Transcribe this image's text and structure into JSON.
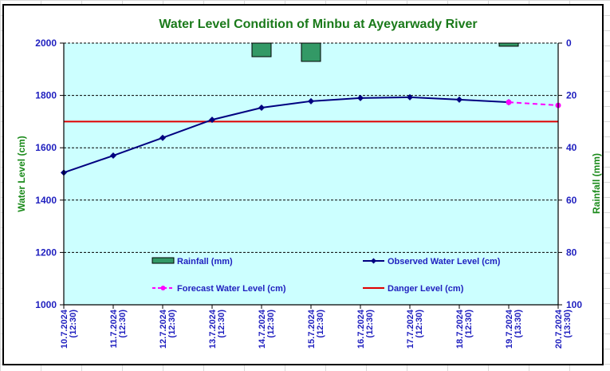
{
  "chart_data": {
    "type": "line",
    "title": "Water Level Condition of Minbu at Ayeyarwady River",
    "ylabel": "Water Level (cm)",
    "y2label": "Rainfall (mm)",
    "ylim": [
      1000,
      2000
    ],
    "yticks": [
      1000,
      1200,
      1400,
      1600,
      1800,
      2000
    ],
    "y2lim": [
      0,
      100
    ],
    "y2_inverted": true,
    "y2ticks": [
      0,
      20,
      40,
      60,
      80,
      100
    ],
    "grid": true,
    "categories": [
      {
        "date": "10.7.2024",
        "time": "(12:30)"
      },
      {
        "date": "11.7.2024",
        "time": "(12:30)"
      },
      {
        "date": "12.7.2024",
        "time": "(12:30)"
      },
      {
        "date": "13.7.2024",
        "time": "(12:30)"
      },
      {
        "date": "14.7.2024",
        "time": "(12:30)"
      },
      {
        "date": "15.7.2024",
        "time": "(12:30)"
      },
      {
        "date": "16.7.2024",
        "time": "(12:30)"
      },
      {
        "date": "17.7.2024",
        "time": "(12:30)"
      },
      {
        "date": "18.7.2024",
        "time": "(12:30)"
      },
      {
        "date": "19.7.2024",
        "time": "(13:30)"
      },
      {
        "date": "20.7.2024",
        "time": "(13:30)"
      }
    ],
    "series": [
      {
        "name": "Rainfall (mm)",
        "type": "bar",
        "axis": "right",
        "color": "#339966",
        "values": [
          0,
          0,
          0,
          0,
          5.2,
          7.0,
          0,
          0,
          0,
          1.2,
          null
        ]
      },
      {
        "name": "Observed Water Level (cm)",
        "type": "line",
        "color": "#000080",
        "values": [
          1505,
          1570,
          1638,
          1707,
          1753,
          1778,
          1790,
          1793,
          1784,
          1774,
          null
        ]
      },
      {
        "name": "Forecast Water Level (cm)",
        "type": "line",
        "dashed": true,
        "color": "#ff00ff",
        "values": [
          null,
          null,
          null,
          null,
          null,
          null,
          null,
          null,
          null,
          1774,
          1762
        ]
      },
      {
        "name": "Danger Level (cm)",
        "type": "line",
        "color": "#e00000",
        "values": [
          1700,
          1700,
          1700,
          1700,
          1700,
          1700,
          1700,
          1700,
          1700,
          1700,
          1700
        ]
      }
    ],
    "legend": {
      "placement": "bottom-inside",
      "entries": [
        "Rainfall (mm)",
        "Observed Water Level (cm)",
        "Forecast Water Level (cm)",
        "Danger Level (cm)"
      ]
    },
    "plot_background": "#ccffff"
  }
}
